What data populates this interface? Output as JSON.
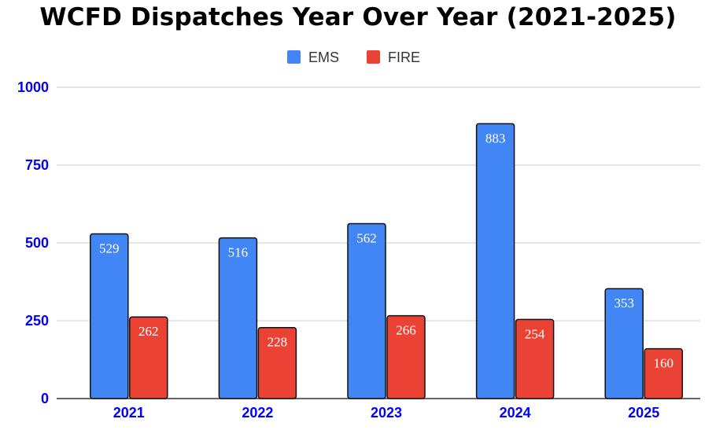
{
  "chart_data": {
    "type": "bar",
    "title": "WCFD Dispatches Year Over Year (2021-2025)",
    "categories": [
      "2021",
      "2022",
      "2023",
      "2024",
      "2025"
    ],
    "series": [
      {
        "name": "EMS",
        "values": [
          529,
          516,
          562,
          883,
          353
        ],
        "color": "#4285f4"
      },
      {
        "name": "FIRE",
        "values": [
          262,
          228,
          266,
          254,
          160
        ],
        "color": "#ea4335"
      }
    ],
    "yticks": [
      "0",
      "250",
      "500",
      "750",
      "1000"
    ],
    "ylim": [
      0,
      1000
    ],
    "grid": true,
    "legend_position": "top-center",
    "axis_label_color": "#0000ff"
  }
}
